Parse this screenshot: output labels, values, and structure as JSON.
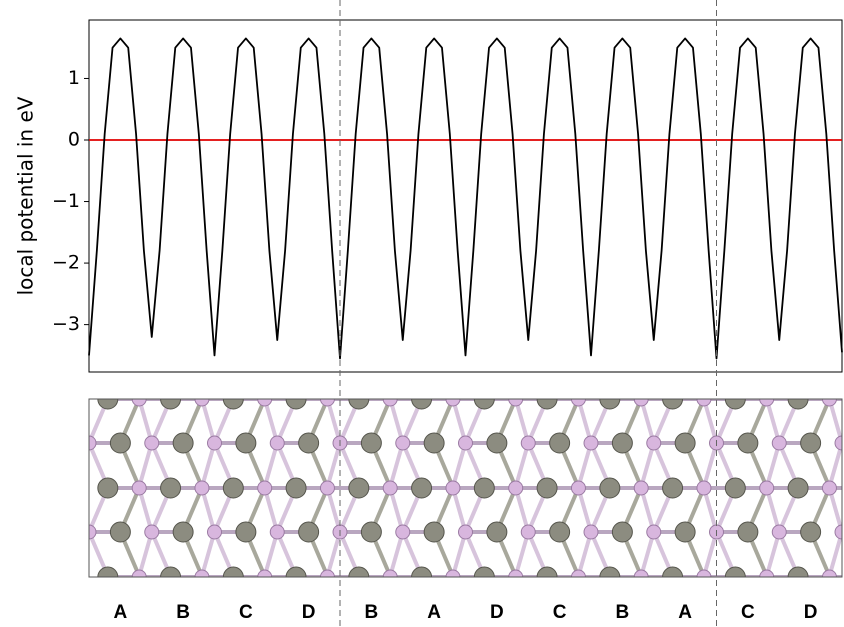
{
  "chart_data": {
    "type": "line",
    "y_label": "local potential in eV",
    "xlim": [
      0,
      12
    ],
    "ylim": [
      -3.77,
      1.95
    ],
    "yticks": [
      1,
      0,
      {
        "value": -1,
        "label": "−1"
      },
      {
        "value": -2,
        "label": "−2"
      },
      {
        "value": -3,
        "label": "−3"
      }
    ],
    "x": [
      0,
      0.125,
      0.25,
      0.375,
      0.5,
      0.625,
      0.75,
      0.875,
      1,
      1.125,
      1.25,
      1.375,
      1.5,
      1.625,
      1.75,
      1.875,
      2,
      2.125,
      2.25,
      2.375,
      2.5,
      2.625,
      2.75,
      2.875,
      3,
      3.125,
      3.25,
      3.375,
      3.5,
      3.625,
      3.75,
      3.875,
      4,
      4.125,
      4.25,
      4.375,
      4.5,
      4.625,
      4.75,
      4.875,
      5,
      5.125,
      5.25,
      5.375,
      5.5,
      5.625,
      5.75,
      5.875,
      6,
      6.125,
      6.25,
      6.375,
      6.5,
      6.625,
      6.75,
      6.875,
      7,
      7.125,
      7.25,
      7.375,
      7.5,
      7.625,
      7.75,
      7.875,
      8,
      8.125,
      8.25,
      8.375,
      8.5,
      8.625,
      8.75,
      8.875,
      9,
      9.125,
      9.25,
      9.375,
      9.5,
      9.625,
      9.75,
      9.875,
      10,
      10.125,
      10.25,
      10.375,
      10.5,
      10.625,
      10.75,
      10.875,
      11,
      11.125,
      11.25,
      11.375,
      11.5,
      11.625,
      11.75,
      11.875,
      12
    ],
    "series": [
      {
        "color": "#000000",
        "values": [
          -3.5,
          -1.8,
          0.1,
          1.5,
          1.65,
          1.5,
          0.1,
          -1.8,
          -3.2,
          -1.8,
          0.1,
          1.5,
          1.65,
          1.5,
          0.1,
          -1.8,
          -3.5,
          -1.8,
          0.1,
          1.5,
          1.65,
          1.5,
          0.1,
          -1.8,
          -3.25,
          -1.8,
          0.1,
          1.5,
          1.65,
          1.5,
          0.1,
          -1.8,
          -3.55,
          -1.8,
          0.1,
          1.5,
          1.65,
          1.5,
          0.1,
          -1.8,
          -3.25,
          -1.8,
          0.1,
          1.5,
          1.65,
          1.5,
          0.1,
          -1.8,
          -3.5,
          -1.8,
          0.1,
          1.5,
          1.65,
          1.5,
          0.1,
          -1.8,
          -3.25,
          -1.8,
          0.1,
          1.5,
          1.65,
          1.5,
          0.1,
          -1.8,
          -3.5,
          -1.8,
          0.1,
          1.5,
          1.65,
          1.5,
          0.1,
          -1.8,
          -3.25,
          -1.8,
          0.1,
          1.5,
          1.65,
          1.5,
          0.1,
          -1.8,
          -3.55,
          -1.8,
          0.1,
          1.5,
          1.65,
          1.5,
          0.1,
          -1.8,
          -3.25,
          -1.8,
          0.1,
          1.5,
          1.65,
          1.5,
          0.1,
          -1.8,
          -3.45
        ]
      }
    ],
    "hline": {
      "value": 0,
      "color": "#e00000"
    },
    "vlines": [
      4,
      10
    ],
    "layer_labels": [
      "A",
      "B",
      "C",
      "D",
      "B",
      "A",
      "D",
      "C",
      "B",
      "A",
      "C",
      "D"
    ]
  }
}
